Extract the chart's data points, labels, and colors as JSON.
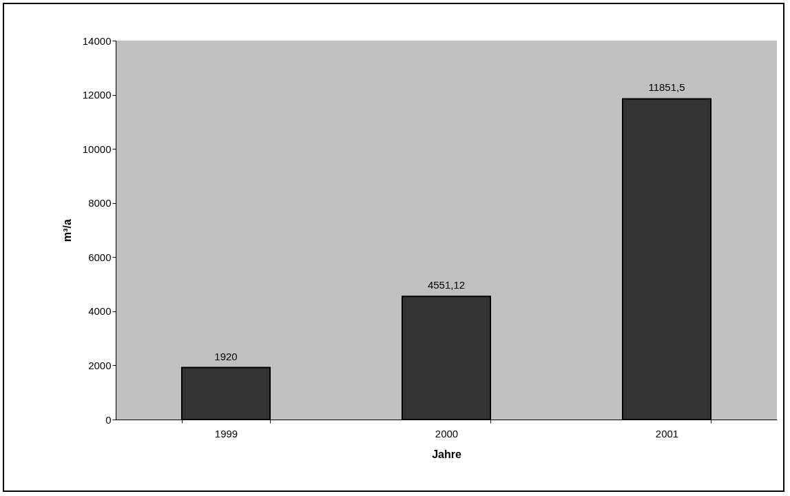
{
  "chart_data": {
    "type": "bar",
    "xlabel": "Jahre",
    "ylabel": "m³/a",
    "categories": [
      "1999",
      "2000",
      "2001"
    ],
    "values": [
      1920,
      4551.12,
      11851.5
    ],
    "value_labels": [
      "1920",
      "4551,12",
      "11851,5"
    ],
    "color": "#333333",
    "ylim": [
      0,
      14000
    ],
    "yticks": [
      0,
      2000,
      4000,
      6000,
      8000,
      10000,
      12000,
      14000
    ],
    "grid": false
  }
}
